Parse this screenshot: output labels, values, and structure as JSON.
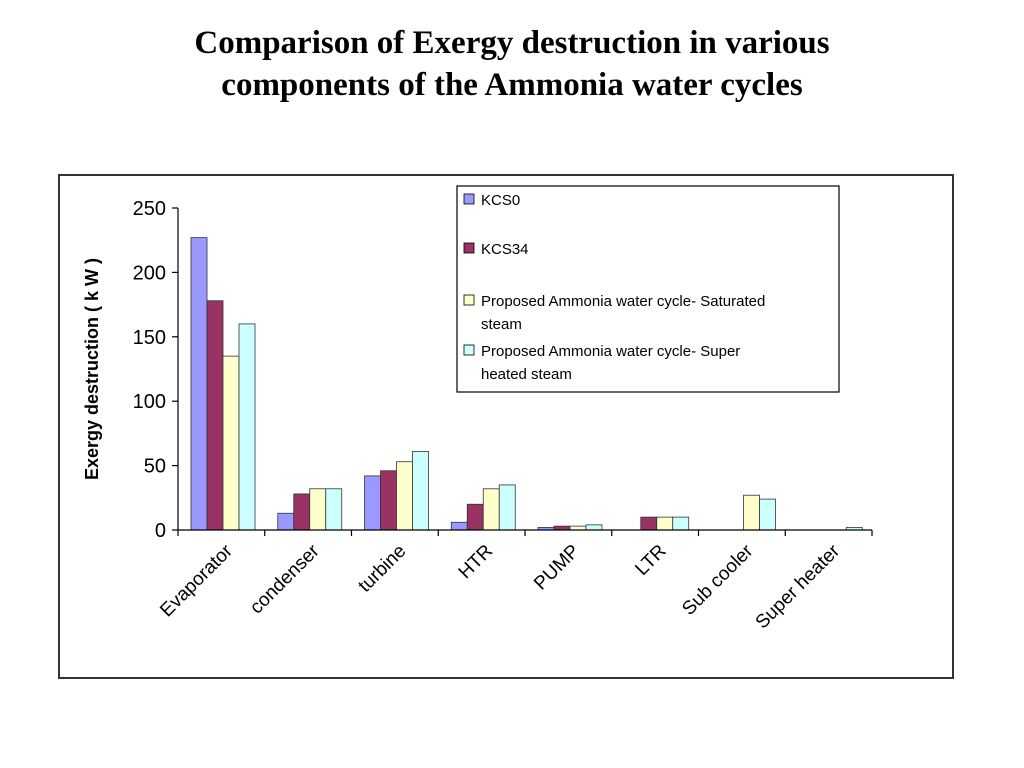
{
  "page": {
    "title_line1": "Comparison of Exergy destruction in various",
    "title_line2": "components of the Ammonia water cycles"
  },
  "chart_data": {
    "type": "bar",
    "title": "",
    "xlabel": "",
    "ylabel": "Exergy destruction ( k W )",
    "ylim": [
      0,
      250
    ],
    "yticks": [
      0,
      50,
      100,
      150,
      200,
      250
    ],
    "grid": false,
    "legend_position": "top-right",
    "categories": [
      "Evaporator",
      "condenser",
      "turbine",
      "HTR",
      "PUMP",
      "LTR",
      "Sub cooler",
      "Super heater"
    ],
    "series": [
      {
        "name": "KCS0",
        "color": "#9999ff",
        "values": [
          227,
          13,
          42,
          6,
          2,
          0,
          0,
          0
        ]
      },
      {
        "name": "KCS34",
        "color": "#993366",
        "values": [
          178,
          28,
          46,
          20,
          3,
          10,
          0,
          0
        ]
      },
      {
        "name": "Proposed Ammonia water cycle- Saturated steam",
        "color": "#ffffcc",
        "values": [
          135,
          32,
          53,
          32,
          3,
          10,
          27,
          0
        ]
      },
      {
        "name": "Proposed Ammonia water cycle- Super heated steam",
        "color": "#ccffff",
        "values": [
          160,
          32,
          61,
          35,
          4,
          10,
          24,
          2
        ]
      }
    ],
    "legend_lines": [
      [
        "KCS0"
      ],
      [
        "KCS34"
      ],
      [
        "Proposed Ammonia water cycle- Saturated",
        "steam"
      ],
      [
        "Proposed Ammonia water cycle- Super",
        "heated steam"
      ]
    ]
  }
}
